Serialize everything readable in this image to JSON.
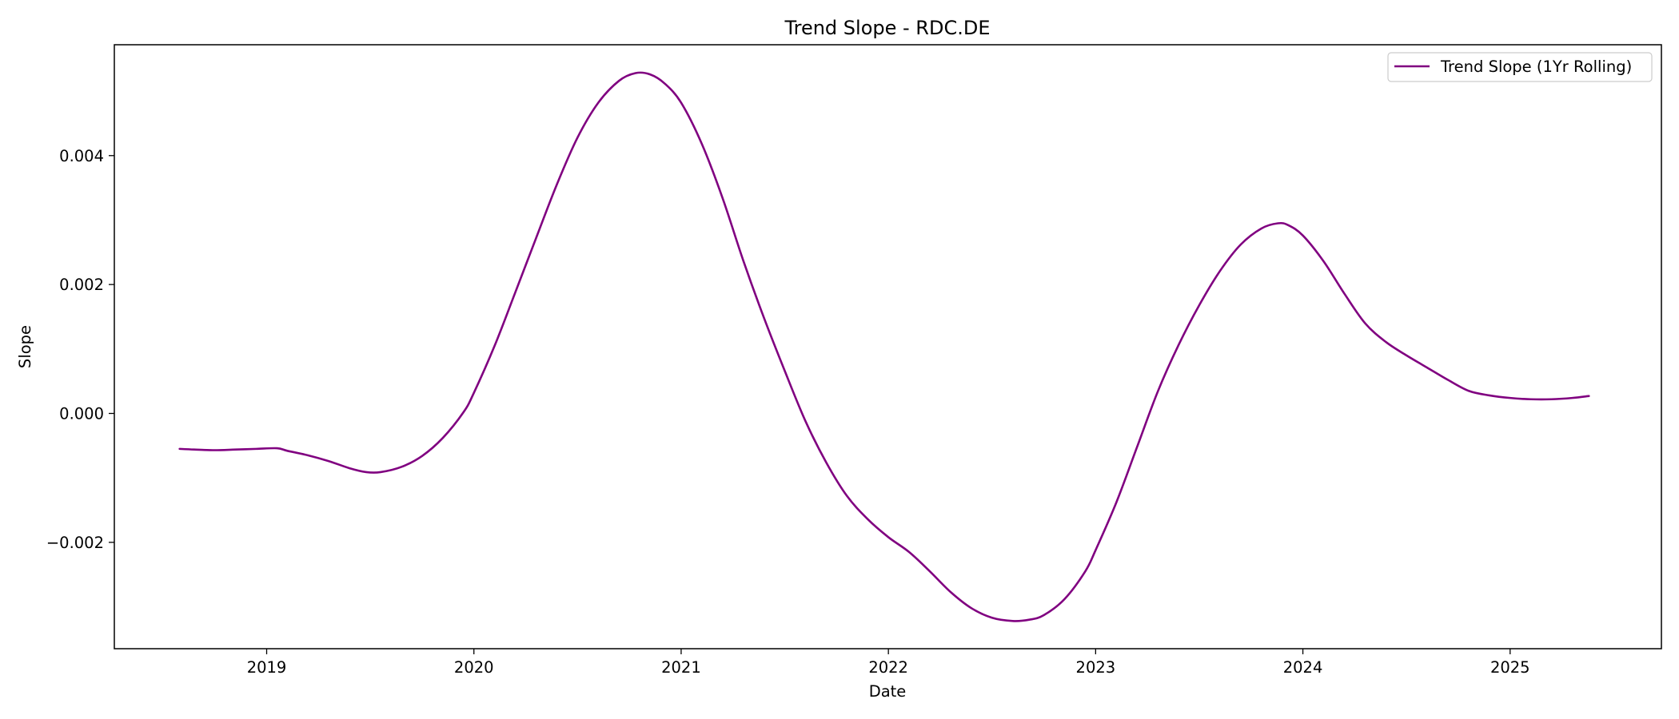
{
  "chart_data": {
    "type": "line",
    "title": "Trend Slope - RDC.DE",
    "xlabel": "Date",
    "ylabel": "Slope",
    "x_ticks": [
      "2019",
      "2020",
      "2021",
      "2022",
      "2023",
      "2024",
      "2025"
    ],
    "y_ticks": [
      "−0.002",
      "0.000",
      "0.002",
      "0.004"
    ],
    "xlim": [
      2018.265,
      2025.73
    ],
    "ylim": [
      -0.00365,
      0.00572
    ],
    "grid": false,
    "legend_position": "top-right",
    "series": [
      {
        "name": "Trend Slope (1Yr Rolling)",
        "color": "#800080",
        "x": [
          2018.58,
          2018.65,
          2018.75,
          2018.85,
          2018.95,
          2019.05,
          2019.1,
          2019.2,
          2019.3,
          2019.4,
          2019.48,
          2019.55,
          2019.65,
          2019.75,
          2019.85,
          2019.95,
          2020.0,
          2020.1,
          2020.2,
          2020.3,
          2020.4,
          2020.5,
          2020.6,
          2020.7,
          2020.78,
          2020.85,
          2020.92,
          2021.0,
          2021.1,
          2021.2,
          2021.3,
          2021.4,
          2021.5,
          2021.6,
          2021.7,
          2021.8,
          2021.9,
          2022.0,
          2022.1,
          2022.2,
          2022.3,
          2022.4,
          2022.5,
          2022.6,
          2022.68,
          2022.75,
          2022.85,
          2022.95,
          2023.0,
          2023.1,
          2023.2,
          2023.3,
          2023.4,
          2023.5,
          2023.6,
          2023.7,
          2023.8,
          2023.88,
          2023.93,
          2024.0,
          2024.1,
          2024.2,
          2024.3,
          2024.4,
          2024.5,
          2024.6,
          2024.7,
          2024.8,
          2024.9,
          2025.0,
          2025.1,
          2025.2,
          2025.3,
          2025.38
        ],
        "values": [
          -0.00055,
          -0.00056,
          -0.00057,
          -0.00056,
          -0.00055,
          -0.00054,
          -0.00058,
          -0.00065,
          -0.00074,
          -0.00085,
          -0.00091,
          -0.00091,
          -0.00083,
          -0.00066,
          -0.00038,
          2e-05,
          0.00032,
          0.00105,
          0.00188,
          0.00272,
          0.00355,
          0.00428,
          0.00482,
          0.00516,
          0.00528,
          0.00526,
          0.00512,
          0.00482,
          0.00418,
          0.00334,
          0.00237,
          0.00148,
          0.00066,
          -0.00012,
          -0.00076,
          -0.00128,
          -0.00164,
          -0.00192,
          -0.00215,
          -0.00245,
          -0.00277,
          -0.00302,
          -0.00317,
          -0.00322,
          -0.0032,
          -0.00313,
          -0.00288,
          -0.00245,
          -0.00212,
          -0.00138,
          -0.00052,
          0.00034,
          0.00106,
          0.00168,
          0.00221,
          0.00262,
          0.00287,
          0.00295,
          0.00292,
          0.00276,
          0.00236,
          0.00186,
          0.0014,
          0.00111,
          0.0009,
          0.00071,
          0.00052,
          0.00035,
          0.00028,
          0.00024,
          0.00022,
          0.00022,
          0.00024,
          0.00027
        ]
      }
    ]
  }
}
